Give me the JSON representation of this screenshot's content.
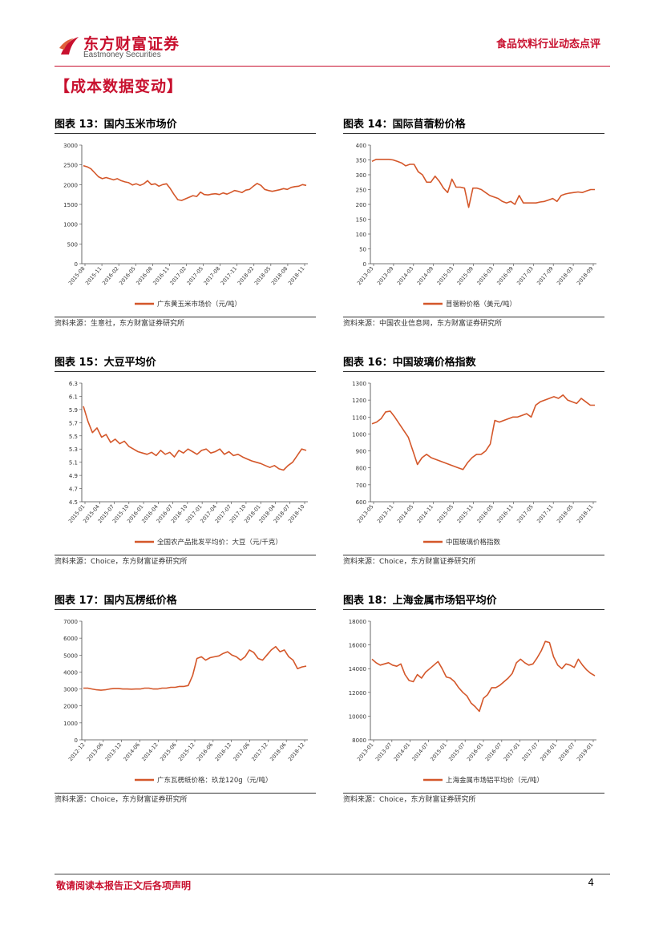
{
  "header": {
    "brand_cn": "东方财富证券",
    "brand_en": "Eastmoney Securities",
    "report_type": "食品饮料行业动态点评",
    "brand_color": "#c8102e"
  },
  "section": {
    "title": "【成本数据变动】"
  },
  "figures": [
    {
      "title": "图表 13：国内玉米市场价",
      "source": "资料来源：生意社，东方财富证券研究所"
    },
    {
      "title": "图表 14：国际苜蓿粉价格",
      "source": "资料来源：中国农业信息网，东方财富证券研究所"
    },
    {
      "title": "图表 15：大豆平均价",
      "source": "资料来源：Choice，东方财富证券研究所"
    },
    {
      "title": "图表 16：中国玻璃价格指数",
      "source": "资料来源：Choice，东方财富证券研究所"
    },
    {
      "title": "图表 17：国内瓦楞纸价格",
      "source": "资料来源：Choice，东方财富证券研究所"
    },
    {
      "title": "图表 18：上海金属市场铝平均价",
      "source": "资料来源：Choice，东方财富证券研究所"
    }
  ],
  "chart_data": [
    {
      "type": "line",
      "series_color": "#d4572a",
      "legend": "广东黄玉米市场价（元/吨）",
      "ylim": [
        0,
        3000
      ],
      "yticks": [
        "3000",
        "2500",
        "2000",
        "1500",
        "1000",
        "500",
        "0"
      ],
      "xticks": [
        "2015-08",
        "2015-11",
        "2016-02",
        "2016-05",
        "2016-08",
        "2016-11",
        "2017-02",
        "2017-05",
        "2017-08",
        "2017-11",
        "2018-02",
        "2018-05",
        "2018-08",
        "2018-11"
      ],
      "values": [
        2480,
        2450,
        2400,
        2300,
        2200,
        2150,
        2180,
        2150,
        2120,
        2150,
        2100,
        2070,
        2050,
        1990,
        2020,
        1980,
        2020,
        2100,
        2000,
        2020,
        1960,
        2000,
        2020,
        1900,
        1750,
        1620,
        1600,
        1640,
        1680,
        1720,
        1700,
        1810,
        1750,
        1740,
        1760,
        1770,
        1750,
        1790,
        1760,
        1800,
        1850,
        1830,
        1800,
        1860,
        1880,
        1960,
        2030,
        1980,
        1880,
        1850,
        1830,
        1850,
        1870,
        1900,
        1880,
        1930,
        1950,
        1960,
        2000,
        1980
      ]
    },
    {
      "type": "line",
      "series_color": "#d4572a",
      "legend": "苜蓿粉价格（美元/吨）",
      "ylim": [
        0,
        400
      ],
      "yticks": [
        "400",
        "350",
        "300",
        "250",
        "200",
        "150",
        "100",
        "50",
        "0"
      ],
      "xticks": [
        "2013-03",
        "2013-09",
        "2014-03",
        "2014-09",
        "2015-03",
        "2015-09",
        "2016-03",
        "2016-09",
        "2017-03",
        "2017-09",
        "2018-03",
        "2018-09"
      ],
      "values": [
        345,
        352,
        352,
        352,
        352,
        350,
        345,
        340,
        330,
        335,
        335,
        310,
        300,
        275,
        275,
        295,
        278,
        255,
        240,
        285,
        258,
        258,
        255,
        190,
        255,
        255,
        250,
        240,
        230,
        225,
        220,
        210,
        205,
        210,
        200,
        230,
        205,
        205,
        205,
        205,
        208,
        210,
        215,
        220,
        210,
        230,
        235,
        238,
        240,
        242,
        240,
        245,
        250,
        250
      ]
    },
    {
      "type": "line",
      "series_color": "#d4572a",
      "legend": "全国农产品批发平均价：大豆（元/千克）",
      "ylim": [
        4.5,
        6.3
      ],
      "yticks": [
        "6.3",
        "6.1",
        "5.9",
        "5.7",
        "5.5",
        "5.3",
        "5.1",
        "4.9",
        "4.7",
        "4.5"
      ],
      "xticks": [
        "2015-01",
        "2015-04",
        "2015-07",
        "2015-10",
        "2016-01",
        "2016-04",
        "2016-07",
        "2016-10",
        "2017-01",
        "2017-04",
        "2017-07",
        "2017-10",
        "2018-01",
        "2018-04",
        "2018-07",
        "2018-10"
      ],
      "values": [
        5.95,
        5.72,
        5.55,
        5.62,
        5.48,
        5.52,
        5.4,
        5.45,
        5.38,
        5.42,
        5.34,
        5.3,
        5.26,
        5.24,
        5.22,
        5.25,
        5.2,
        5.28,
        5.22,
        5.25,
        5.18,
        5.28,
        5.24,
        5.3,
        5.26,
        5.22,
        5.28,
        5.3,
        5.24,
        5.26,
        5.3,
        5.22,
        5.26,
        5.2,
        5.22,
        5.18,
        5.15,
        5.12,
        5.1,
        5.08,
        5.05,
        5.02,
        5.05,
        5.0,
        4.98,
        5.05,
        5.1,
        5.2,
        5.3,
        5.28
      ]
    },
    {
      "type": "line",
      "series_color": "#d4572a",
      "legend": "中国玻璃价格指数",
      "ylim": [
        600,
        1300
      ],
      "yticks": [
        "1300",
        "1200",
        "1100",
        "1000",
        "900",
        "800",
        "700",
        "600"
      ],
      "xticks": [
        "2013-05",
        "2013-11",
        "2014-05",
        "2014-11",
        "2015-05",
        "2015-11",
        "2016-05",
        "2016-11",
        "2017-05",
        "2017-11",
        "2018-05",
        "2018-11"
      ],
      "values": [
        1060,
        1070,
        1090,
        1130,
        1135,
        1100,
        1060,
        1020,
        980,
        900,
        820,
        860,
        880,
        860,
        850,
        840,
        830,
        820,
        810,
        800,
        790,
        830,
        860,
        880,
        880,
        900,
        940,
        1080,
        1070,
        1080,
        1090,
        1100,
        1100,
        1110,
        1120,
        1100,
        1170,
        1190,
        1200,
        1210,
        1220,
        1210,
        1230,
        1200,
        1190,
        1180,
        1210,
        1190,
        1170,
        1170
      ]
    },
    {
      "type": "line",
      "series_color": "#d4572a",
      "legend": "广东瓦楞纸价格：玖龙120g（元/吨）",
      "ylim": [
        0,
        7000
      ],
      "yticks": [
        "7000",
        "6000",
        "5000",
        "4000",
        "3000",
        "2000",
        "1000",
        "0"
      ],
      "xticks": [
        "2012-12",
        "2013-06",
        "2013-12",
        "2014-06",
        "2014-12",
        "2015-06",
        "2015-12",
        "2016-06",
        "2016-12",
        "2017-06",
        "2017-12",
        "2018-06",
        "2018-12"
      ],
      "values": [
        3050,
        3050,
        3000,
        2950,
        2930,
        2950,
        3000,
        3030,
        3030,
        3000,
        3000,
        2990,
        3000,
        3000,
        3050,
        3050,
        3000,
        3000,
        3050,
        3050,
        3100,
        3100,
        3150,
        3150,
        3200,
        3800,
        4800,
        4900,
        4700,
        4850,
        4900,
        4950,
        5100,
        5200,
        5000,
        4900,
        4700,
        4900,
        5300,
        5150,
        4800,
        4700,
        5000,
        5300,
        5500,
        5200,
        5300,
        4900,
        4700,
        4200,
        4300,
        4350
      ]
    },
    {
      "type": "line",
      "series_color": "#d4572a",
      "legend": "上海金属市场铝平均价（元/吨）",
      "ylim": [
        8000,
        18000
      ],
      "yticks": [
        "18000",
        "16000",
        "14000",
        "12000",
        "10000",
        "8000"
      ],
      "xticks": [
        "2013-01",
        "2013-07",
        "2014-01",
        "2014-07",
        "2015-01",
        "2015-07",
        "2016-01",
        "2016-07",
        "2017-01",
        "2017-07",
        "2018-01",
        "2018-07",
        "2019-01"
      ],
      "values": [
        14800,
        14500,
        14300,
        14400,
        14500,
        14300,
        14200,
        14400,
        13500,
        13000,
        12900,
        13500,
        13200,
        13700,
        14000,
        14300,
        14600,
        14000,
        13300,
        13200,
        12900,
        12400,
        12000,
        11700,
        11100,
        10800,
        10400,
        11500,
        11800,
        12400,
        12400,
        12600,
        12900,
        13200,
        13600,
        14500,
        14800,
        14500,
        14300,
        14400,
        14900,
        15500,
        16300,
        16200,
        15000,
        14300,
        14000,
        14400,
        14300,
        14100,
        14800,
        14300,
        13900,
        13600,
        13400
      ]
    }
  ],
  "footer": {
    "disclaimer": "敬请阅读本报告正文后各项声明",
    "page_number": "4"
  }
}
